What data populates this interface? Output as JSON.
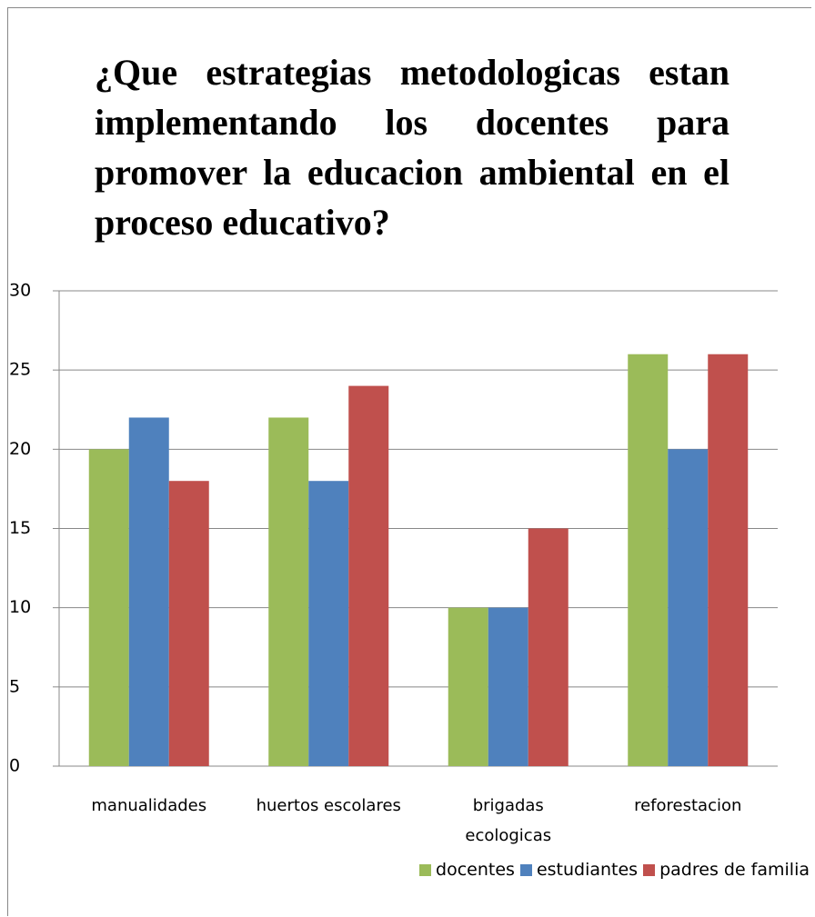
{
  "chart_data": {
    "type": "bar",
    "title": "¿Que estrategias metodologicas estan implementando los docentes para promover la educacion ambiental en el proceso educativo?",
    "categories": [
      "manualidades",
      "huertos escolares",
      "brigadas ecologicas",
      "reforestacion"
    ],
    "series": [
      {
        "name": "docentes",
        "color": "#9bbb59",
        "values": [
          20,
          22,
          10,
          26
        ]
      },
      {
        "name": "estudiantes",
        "color": "#4f81bd",
        "values": [
          22,
          18,
          10,
          20
        ]
      },
      {
        "name": "padres de familia",
        "color": "#c0504d",
        "values": [
          18,
          24,
          15,
          26
        ]
      }
    ],
    "ylim": [
      0,
      30
    ],
    "yticks": [
      0,
      5,
      10,
      15,
      20,
      25,
      30
    ],
    "grid": true,
    "legend": "bottom-right"
  }
}
